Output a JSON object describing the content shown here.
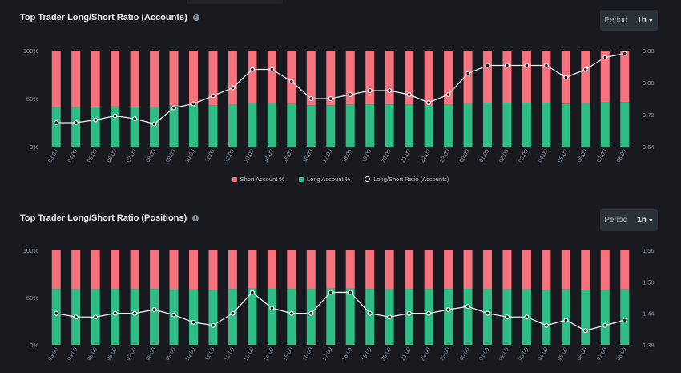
{
  "colors": {
    "short": "#f6727d",
    "long": "#2ebd85",
    "line": "#eaecef",
    "grid": "#2b3139",
    "axis": "#848e9c"
  },
  "period_label": "Period",
  "period_value": "1h",
  "legend": {
    "short": "Short Account %",
    "long": "Long Account %",
    "ratio": "Long/Short Ratio (Accounts)"
  },
  "chart_data": [
    {
      "type": "bar+line",
      "title": "Top Trader Long/Short Ratio (Accounts)",
      "categories": [
        "03:00",
        "04:00",
        "05:00",
        "06:00",
        "07:00",
        "08:00",
        "09:00",
        "10:00",
        "11:00",
        "12:00",
        "13:00",
        "14:00",
        "15:00",
        "16:00",
        "17:00",
        "18:00",
        "19:00",
        "20:00",
        "21:00",
        "22:00",
        "23:00",
        "00:00",
        "01:00",
        "02:00",
        "03:00",
        "04:00",
        "05:00",
        "06:00",
        "07:00",
        "08:00"
      ],
      "y_left_ticks": [
        "0%",
        "50%",
        "100%"
      ],
      "y_right_ticks": [
        "0.64",
        "0.72",
        "0.80",
        "0.88"
      ],
      "y_right_range": [
        0.64,
        0.88
      ],
      "series": [
        {
          "name": "Long Account %",
          "values": [
            41.2,
            41.2,
            41.4,
            41.8,
            41.5,
            41.0,
            42.3,
            42.6,
            43.3,
            43.7,
            45.3,
            45.3,
            44.4,
            43.2,
            43.2,
            43.6,
            43.9,
            43.9,
            43.6,
            42.9,
            43.6,
            45.1,
            45.7,
            45.7,
            45.7,
            45.7,
            44.8,
            45.4,
            46.3,
            46.6
          ]
        },
        {
          "name": "Short Account %",
          "values": [
            58.8,
            58.8,
            58.6,
            58.2,
            58.5,
            59.0,
            57.7,
            57.4,
            56.7,
            56.3,
            54.7,
            54.7,
            55.6,
            56.8,
            56.8,
            56.4,
            56.1,
            56.1,
            56.4,
            57.1,
            56.4,
            54.9,
            54.3,
            54.3,
            54.3,
            54.3,
            55.2,
            54.6,
            53.7,
            53.4
          ]
        },
        {
          "name": "Long/Short Ratio (Accounts)",
          "values": [
            0.7,
            0.7,
            0.707,
            0.717,
            0.71,
            0.697,
            0.737,
            0.747,
            0.767,
            0.787,
            0.833,
            0.833,
            0.803,
            0.76,
            0.76,
            0.77,
            0.78,
            0.78,
            0.77,
            0.75,
            0.77,
            0.823,
            0.843,
            0.843,
            0.843,
            0.843,
            0.813,
            0.833,
            0.863,
            0.873
          ]
        }
      ]
    },
    {
      "type": "bar+line",
      "title": "Top Trader Long/Short Ratio (Positions)",
      "categories": [
        "03:00",
        "04:00",
        "05:00",
        "06:00",
        "07:00",
        "08:00",
        "09:00",
        "10:00",
        "11:00",
        "12:00",
        "13:00",
        "14:00",
        "15:00",
        "16:00",
        "17:00",
        "18:00",
        "19:00",
        "20:00",
        "21:00",
        "22:00",
        "23:00",
        "00:00",
        "01:00",
        "02:00",
        "03:00",
        "04:00",
        "05:00",
        "06:00",
        "07:00",
        "08:00"
      ],
      "y_left_ticks": [
        "0%",
        "50%",
        "100%"
      ],
      "y_right_ticks": [
        "1.38",
        "1.44",
        "1.50",
        "1.56"
      ],
      "y_right_range": [
        1.38,
        1.56
      ],
      "series": [
        {
          "name": "Long Account %",
          "values": [
            59.0,
            58.8,
            58.8,
            59.0,
            59.0,
            59.2,
            58.9,
            58.6,
            58.5,
            59.0,
            59.7,
            59.3,
            59.1,
            59.0,
            59.7,
            59.7,
            59.0,
            58.8,
            59.0,
            59.0,
            59.1,
            59.3,
            59.0,
            58.8,
            58.8,
            58.5,
            58.7,
            58.3,
            58.5,
            58.7
          ]
        },
        {
          "name": "Short Account %",
          "values": [
            41.0,
            41.2,
            41.2,
            41.0,
            41.0,
            40.8,
            41.1,
            41.4,
            41.5,
            41.0,
            40.3,
            40.7,
            40.9,
            41.0,
            40.3,
            40.3,
            41.0,
            41.2,
            41.0,
            41.0,
            40.9,
            40.7,
            41.0,
            41.2,
            41.2,
            41.5,
            41.3,
            41.7,
            41.5,
            41.3
          ]
        },
        {
          "name": "Long/Short Ratio (Positions)",
          "values": [
            1.44,
            1.433,
            1.433,
            1.44,
            1.44,
            1.447,
            1.437,
            1.423,
            1.417,
            1.44,
            1.48,
            1.45,
            1.44,
            1.44,
            1.48,
            1.48,
            1.44,
            1.433,
            1.44,
            1.44,
            1.447,
            1.453,
            1.44,
            1.433,
            1.433,
            1.417,
            1.427,
            1.407,
            1.417,
            1.427
          ]
        }
      ]
    }
  ]
}
